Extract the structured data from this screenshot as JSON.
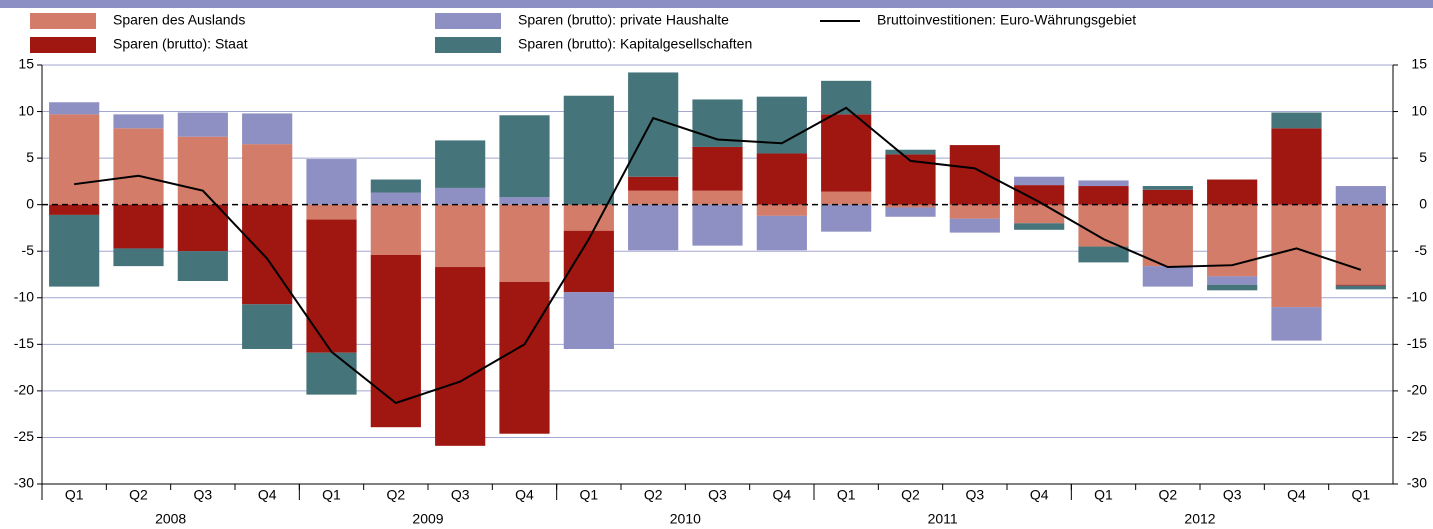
{
  "chart_data": {
    "type": "bar",
    "stacked": true,
    "categories": [
      "Q1",
      "Q2",
      "Q3",
      "Q4",
      "Q1",
      "Q2",
      "Q3",
      "Q4",
      "Q1",
      "Q2",
      "Q3",
      "Q4",
      "Q1",
      "Q2",
      "Q3",
      "Q4",
      "Q1",
      "Q2",
      "Q3",
      "Q4",
      "Q1"
    ],
    "year_groups": [
      "2008",
      "2009",
      "2010",
      "2011",
      "2012"
    ],
    "series": [
      {
        "name": "Sparen des Auslands",
        "color": "#d27c69",
        "values": [
          9.7,
          8.2,
          7.3,
          6.5,
          -1.6,
          -5.4,
          -6.7,
          -8.3,
          -2.8,
          1.5,
          1.5,
          -1.2,
          1.4,
          -0.3,
          -1.5,
          -2.0,
          -4.5,
          -6.6,
          -7.7,
          -11.0,
          -8.6
        ]
      },
      {
        "name": "Sparen (brutto): Staat",
        "color": "#a01611",
        "values": [
          -1.1,
          -4.7,
          -5.0,
          -10.7,
          -14.3,
          -18.5,
          -19.2,
          -16.3,
          -6.6,
          1.5,
          4.7,
          5.5,
          8.3,
          5.4,
          6.4,
          2.1,
          2.0,
          1.6,
          2.7,
          8.2,
          -0.1
        ]
      },
      {
        "name": "Sparen (brutto): private Haushalte",
        "color": "#8e8fc3",
        "values": [
          1.3,
          1.5,
          2.6,
          3.3,
          4.9,
          1.3,
          1.8,
          0.8,
          -6.1,
          -4.9,
          -4.4,
          -3.7,
          -2.9,
          -1.0,
          -1.5,
          0.9,
          0.6,
          -2.2,
          -0.9,
          -3.6,
          2.0
        ]
      },
      {
        "name": "Sparen (brutto): Kapitalgesellschaften",
        "color": "#45747a",
        "values": [
          -7.7,
          -1.9,
          -3.2,
          -4.8,
          -4.5,
          1.4,
          5.1,
          8.8,
          11.7,
          11.2,
          5.1,
          6.1,
          3.6,
          0.5,
          0,
          -0.7,
          -1.7,
          0.4,
          -0.6,
          1.7,
          -0.4
        ]
      },
      {
        "name": "Bruttoinvestitionen: Euro-Währungsgebiet",
        "color": "#000000",
        "type": "line",
        "values": [
          2.2,
          3.1,
          1.5,
          -5.8,
          -15.8,
          -21.3,
          -19.0,
          -15.0,
          -3.7,
          9.3,
          7.0,
          6.6,
          10.4,
          4.7,
          3.9,
          0.3,
          -3.7,
          -6.7,
          -6.5,
          -4.7,
          -7.0
        ]
      }
    ],
    "ylim": [
      -30,
      15
    ],
    "yticks": [
      15,
      10,
      5,
      0,
      -5,
      -10,
      -15,
      -20,
      -25,
      -30
    ],
    "y2lim": [
      -30,
      15
    ],
    "y2ticks": [
      15,
      10,
      5,
      0,
      -5,
      -10,
      -15,
      -20,
      -25,
      -30
    ],
    "grid": true,
    "grid_color": "#a5a7d2",
    "header_color": "#8c8fc4"
  }
}
